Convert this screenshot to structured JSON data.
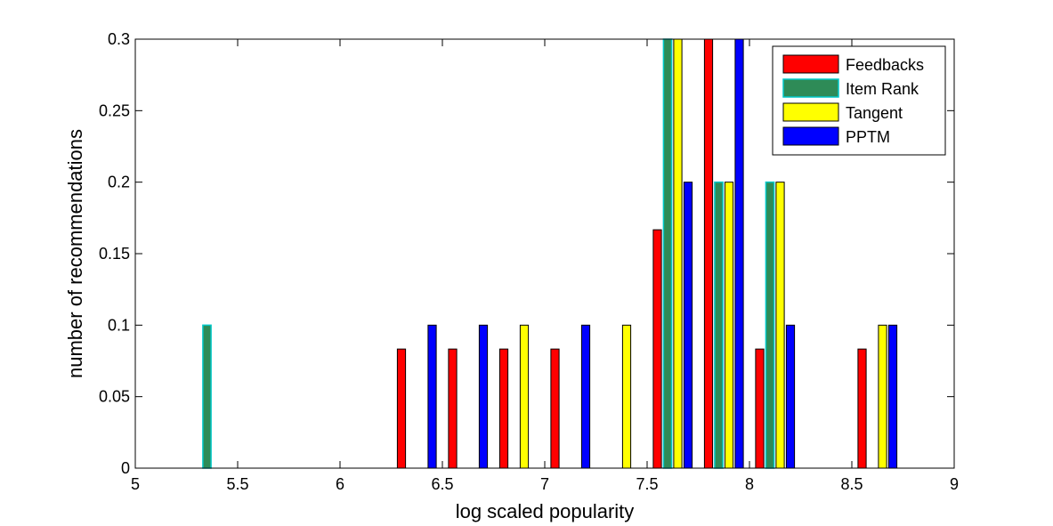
{
  "chart_data": {
    "type": "bar",
    "title": "",
    "xlabel": "log scaled popularity",
    "ylabel": "number of recommendations",
    "xlim": [
      5,
      9
    ],
    "ylim": [
      0,
      0.3
    ],
    "x_ticks": [
      5,
      5.5,
      6,
      6.5,
      7,
      7.5,
      8,
      8.5,
      9
    ],
    "x_tick_labels": [
      "5",
      "5.5",
      "6",
      "6.5",
      "7",
      "7.5",
      "8",
      "8.5",
      "9"
    ],
    "y_ticks": [
      0,
      0.05,
      0.1,
      0.15,
      0.2,
      0.25,
      0.3
    ],
    "y_tick_labels": [
      "0",
      "0.05",
      "0.1",
      "0.15",
      "0.2",
      "0.25",
      "0.3"
    ],
    "grid": false,
    "legend_position": "top-right",
    "bin_centers": [
      5.125,
      5.375,
      5.625,
      5.875,
      6.125,
      6.375,
      6.625,
      6.875,
      7.125,
      7.375,
      7.625,
      7.875,
      8.125,
      8.375,
      8.625,
      8.875
    ],
    "series": [
      {
        "name": "Feedbacks",
        "color": "#ff0000",
        "values": [
          0,
          0,
          0,
          0,
          0,
          0.0833,
          0.0833,
          0.0833,
          0.0833,
          0,
          0.1667,
          0.3,
          0.0833,
          0,
          0.0833,
          0
        ]
      },
      {
        "name": "Item Rank",
        "color": "#2e8b57",
        "edge_color": "#00c8c8",
        "values": [
          0,
          0.1,
          0,
          0,
          0,
          0,
          0,
          0,
          0,
          0,
          0.3,
          0.2,
          0.2,
          0,
          0,
          0
        ]
      },
      {
        "name": "Tangent",
        "color": "#ffff00",
        "values": [
          0,
          0,
          0,
          0,
          0,
          0,
          0,
          0.1,
          0,
          0.1,
          0.3,
          0.2,
          0.2,
          0,
          0.1,
          0
        ]
      },
      {
        "name": "PPTM",
        "color": "#0000ff",
        "values": [
          0,
          0,
          0,
          0,
          0,
          0.1,
          0.1,
          0,
          0.1,
          0,
          0.2,
          0.3,
          0.1,
          0,
          0.1,
          0
        ]
      }
    ]
  }
}
